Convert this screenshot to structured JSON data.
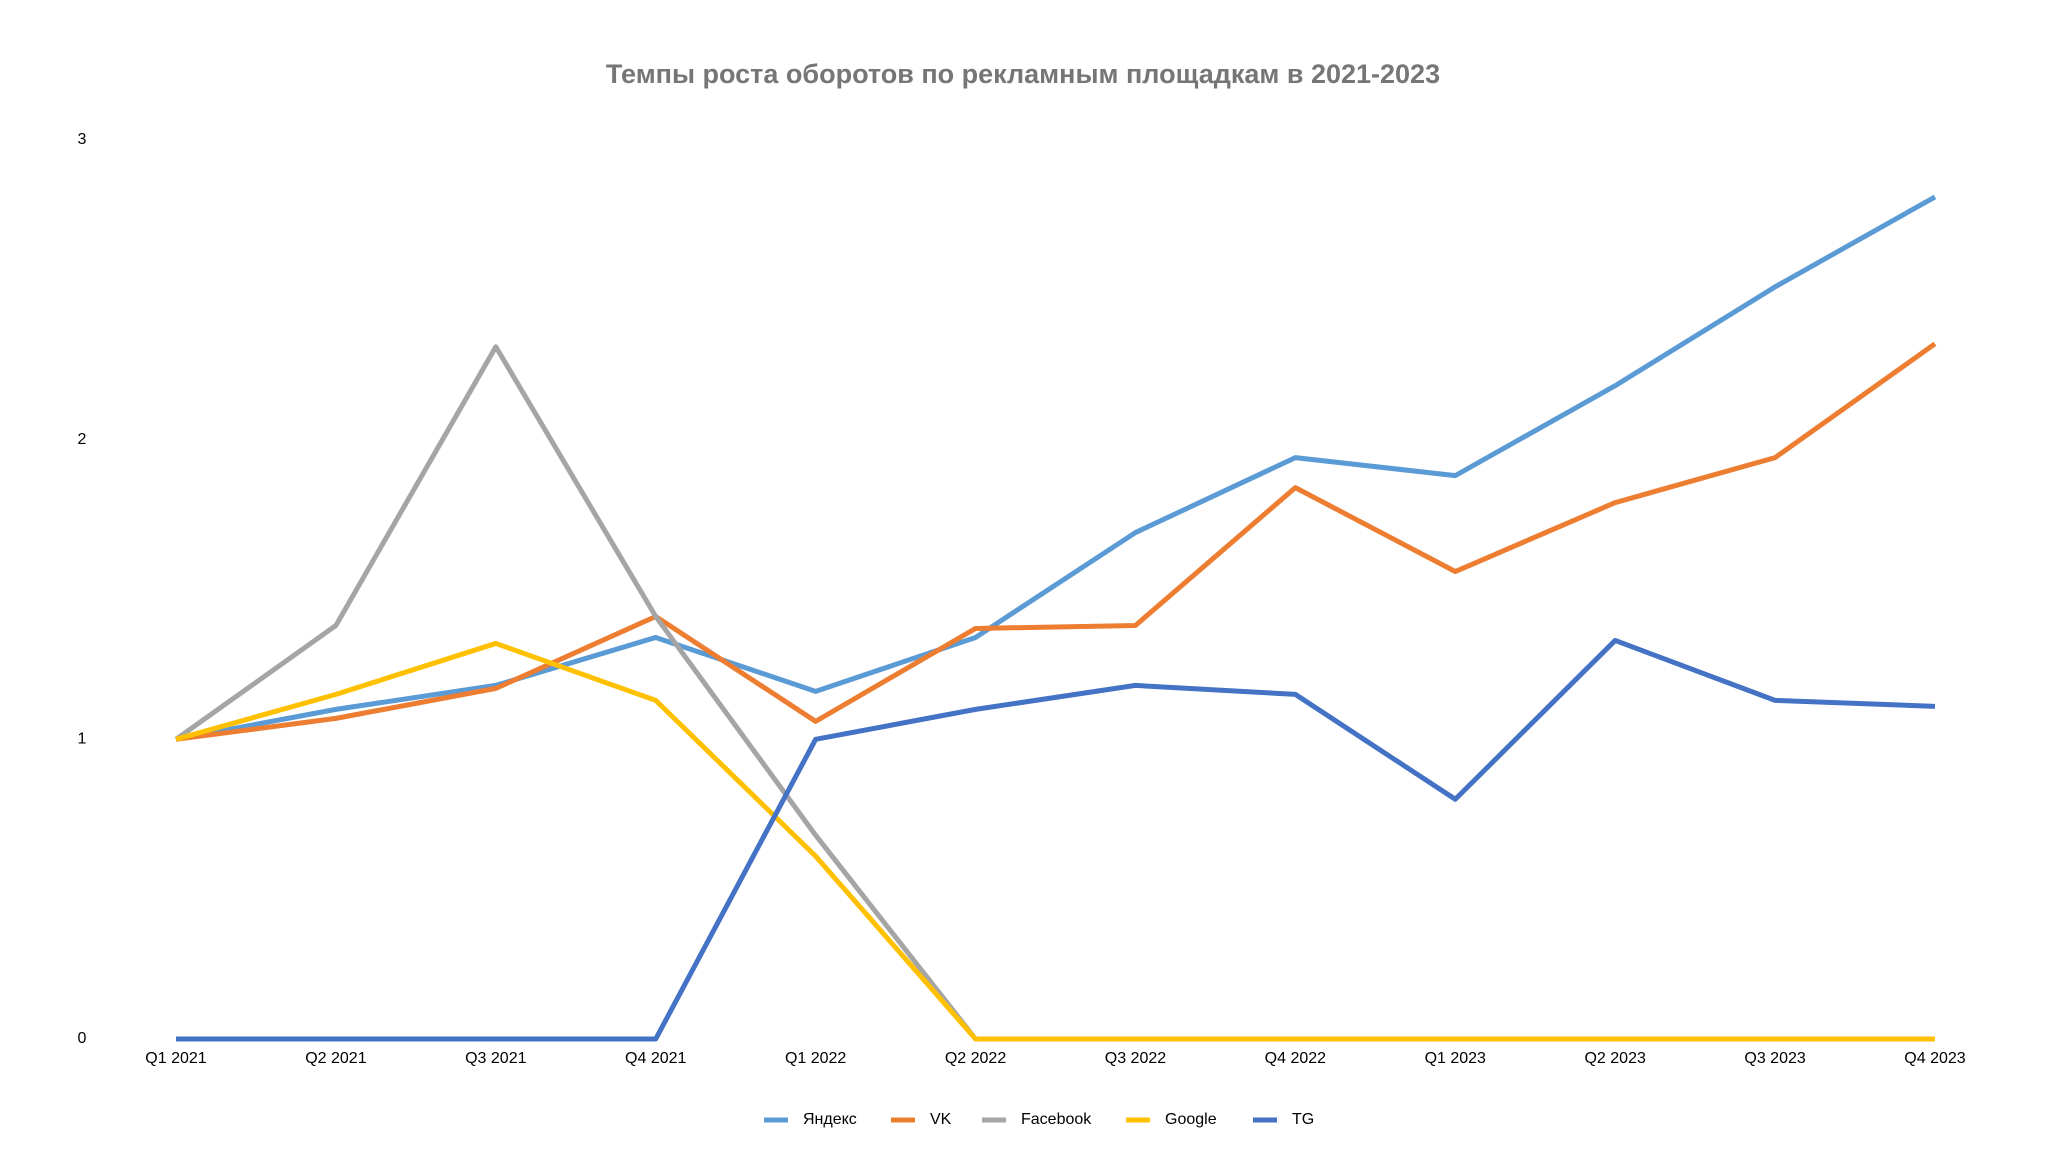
{
  "chart_data": {
    "type": "line",
    "title": "Темпы роста оборотов по рекламным площадкам в 2021-2023",
    "categories": [
      "Q1 2021",
      "Q2 2021",
      "Q3 2021",
      "Q4 2021",
      "Q1 2022",
      "Q2 2022",
      "Q3 2022",
      "Q4 2022",
      "Q1 2023",
      "Q2 2023",
      "Q3 2023",
      "Q4 2023"
    ],
    "series": [
      {
        "name": "Яндекс",
        "color": "#5b9bd5",
        "values": [
          1,
          1.1,
          1.18,
          1.34,
          1.16,
          1.34,
          1.69,
          1.94,
          1.88,
          2.18,
          2.51,
          2.81
        ]
      },
      {
        "name": "VK",
        "color": "#ed7d31",
        "values": [
          1,
          1.07,
          1.17,
          1.41,
          1.06,
          1.37,
          1.38,
          1.84,
          1.56,
          1.79,
          1.94,
          2.32
        ]
      },
      {
        "name": "Facebook",
        "color": "#a5a5a5",
        "values": [
          1,
          1.38,
          2.31,
          1.41,
          0.68,
          0,
          0,
          0,
          0,
          0,
          0,
          0
        ]
      },
      {
        "name": "Google",
        "color": "#ffc000",
        "values": [
          1,
          1.15,
          1.32,
          1.13,
          0.61,
          0,
          0,
          0,
          0,
          0,
          0,
          0
        ]
      },
      {
        "name": "TG",
        "color": "#4472c4",
        "values": [
          0,
          0,
          0,
          0,
          1,
          1.1,
          1.18,
          1.15,
          0.8,
          1.33,
          1.13,
          1.11
        ]
      }
    ],
    "ylim": [
      0,
      3
    ],
    "yticks": [
      0,
      1,
      2,
      3
    ],
    "grid": false,
    "legend": "bottom"
  }
}
